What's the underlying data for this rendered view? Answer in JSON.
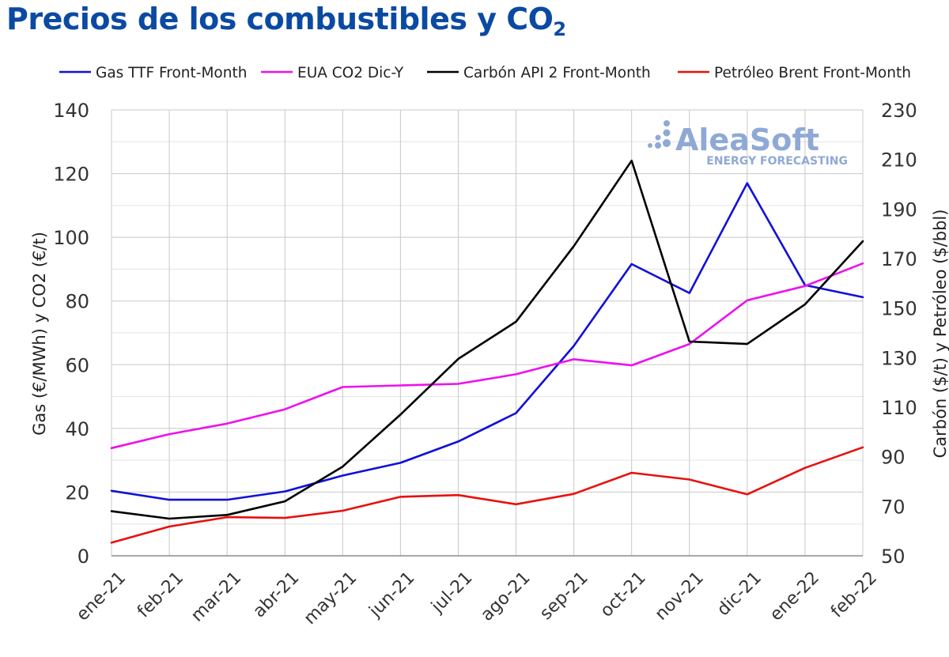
{
  "header": {
    "title": "Precios de los combustibles y CO",
    "title_sub": "2"
  },
  "watermark": {
    "brand": "AleaSoft",
    "tagline": "ENERGY FORECASTING"
  },
  "chart_data": {
    "type": "line",
    "categories": [
      "ene-21",
      "feb-21",
      "mar-21",
      "abr-21",
      "may-21",
      "jun-21",
      "jul-21",
      "ago-21",
      "sep-21",
      "oct-21",
      "nov-21",
      "dic-21",
      "ene-22",
      "feb-22"
    ],
    "y_left": {
      "label": "Gas (€/MWh) y CO2 (€/t)",
      "min": 0,
      "max": 140,
      "step": 20,
      "ticks": [
        "0",
        "20",
        "40",
        "60",
        "80",
        "100",
        "120",
        "140"
      ]
    },
    "y_right": {
      "label": "Carbón ($/t) y Petróleo ($/bbl)",
      "min": 50,
      "max": 230,
      "step": 20,
      "ticks": [
        "50",
        "70",
        "90",
        "110",
        "130",
        "150",
        "170",
        "190",
        "210",
        "230"
      ]
    },
    "series": [
      {
        "name": "Gas TTF Front-Month",
        "axis": "left",
        "color": "#1010d8",
        "values": [
          20.4,
          17.6,
          17.6,
          20.2,
          25.2,
          29.2,
          35.9,
          44.8,
          65.9,
          91.6,
          82.5,
          117,
          85,
          81.2
        ]
      },
      {
        "name": "EUA CO2 Dic-Y",
        "axis": "left",
        "color": "#ee10ee",
        "values": [
          33.8,
          38.2,
          41.5,
          46,
          53,
          53.5,
          54,
          57,
          61.7,
          59.8,
          66.5,
          80.2,
          84.7,
          91.8
        ]
      },
      {
        "name": "Carbón API 2 Front-Month",
        "axis": "right",
        "color": "#000000",
        "values": [
          68,
          65,
          66.5,
          72,
          86,
          107,
          129.5,
          144.5,
          175,
          209.5,
          136.5,
          135.5,
          151.5,
          177
        ]
      },
      {
        "name": "Petróleo Brent Front-Month",
        "axis": "right",
        "color": "#e8100e",
        "values": [
          55.3,
          61.8,
          65.6,
          65.3,
          68.2,
          73.8,
          74.5,
          70.8,
          75,
          83.5,
          80.8,
          74.8,
          85.5,
          93.8
        ]
      }
    ]
  }
}
